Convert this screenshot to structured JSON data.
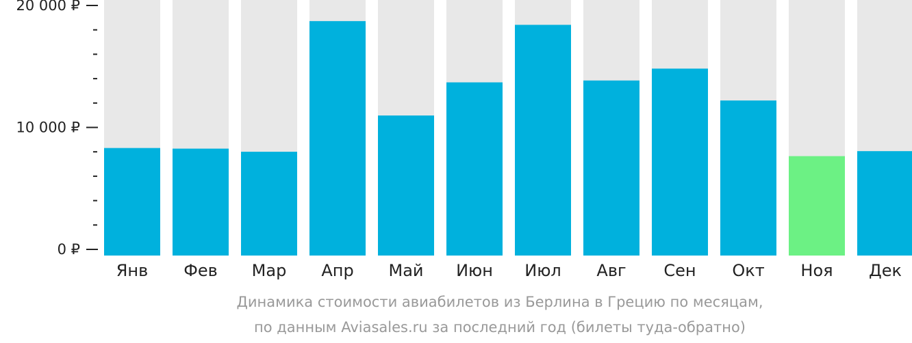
{
  "chart_data": {
    "type": "bar",
    "categories": [
      "Янв",
      "Фев",
      "Мар",
      "Апр",
      "Май",
      "Июн",
      "Июл",
      "Авг",
      "Сен",
      "Окт",
      "Ноя",
      "Дек"
    ],
    "values": [
      8600,
      8550,
      8300,
      18750,
      11200,
      13850,
      18450,
      14000,
      14950,
      12400,
      7950,
      8350
    ],
    "highlight_index": 10,
    "ylim": [
      0,
      20000
    ],
    "yticks": [
      {
        "value": 0,
        "label": "0 ₽"
      },
      {
        "value": 10000,
        "label": "10 000 ₽"
      },
      {
        "value": 20000,
        "label": "20 000 ₽"
      }
    ],
    "minor_tick_step": 2000,
    "grid": false,
    "colors": {
      "bar": "#00b1dd",
      "highlight": "#6cf184",
      "background_bar": "#e8e8e8",
      "axis": "#222222"
    }
  },
  "caption": {
    "line1": "Динамика стоимости авиабилетов из Берлина в Грецию по месяцам,",
    "line2": "по данным Aviasales.ru за последний год (билеты туда-обратно)"
  }
}
